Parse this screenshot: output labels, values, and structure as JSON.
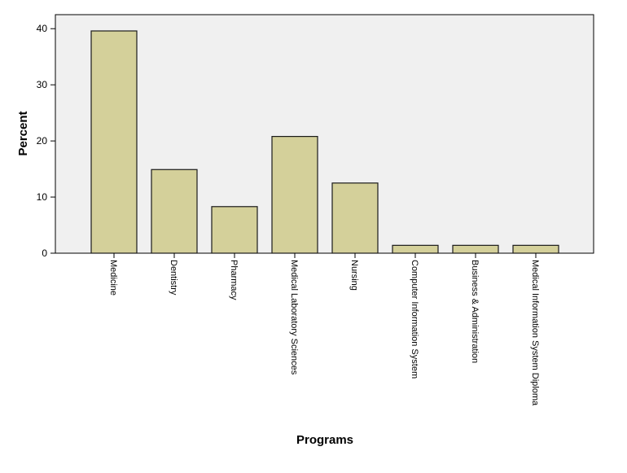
{
  "chart_data": {
    "type": "bar",
    "title": "",
    "xlabel": "Programs",
    "ylabel": "Percent",
    "ylim": [
      0,
      42.5
    ],
    "yticks": [
      0,
      10,
      20,
      30,
      40
    ],
    "grid": false,
    "legend": "none",
    "categories": [
      "Medicine",
      "Dentistry",
      "Pharmacy",
      "Medical Laboratory Sciences",
      "Nursing",
      "Computer Information System",
      "Business & Administration",
      "Medical Information System Diploma"
    ],
    "values": [
      39.6,
      14.9,
      8.3,
      20.8,
      12.5,
      1.4,
      1.4,
      1.4
    ],
    "colors": {
      "bar_fill": "#d4d09a",
      "bar_stroke": "#1a1a1a",
      "plot_bg": "#f0f0f0",
      "axis": "#000000"
    }
  }
}
